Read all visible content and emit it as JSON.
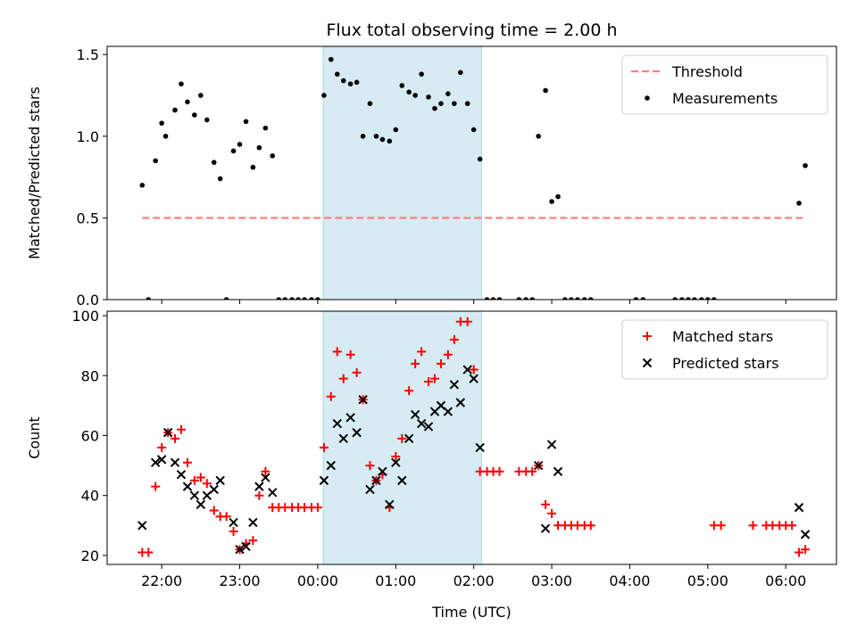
{
  "chart_data": [
    {
      "type": "scatter",
      "title": "Flux total observing time = 2.00 h",
      "xlabel": "",
      "ylabel": "Matched/Predicted stars",
      "ylim": [
        0,
        1.55
      ],
      "xlim": [
        21.3,
        6.65
      ],
      "yticks": [
        {
          "v": 0.0,
          "label": "0.0"
        },
        {
          "v": 0.5,
          "label": "0.5"
        },
        {
          "v": 1.0,
          "label": "1.0"
        },
        {
          "v": 1.5,
          "label": "1.5"
        }
      ],
      "highlight_span": [
        24.07,
        26.1
      ],
      "highlight_color": "#add8e6",
      "threshold": {
        "name": "Threshold",
        "y": 0.5,
        "x_from": 21.75,
        "x_to": 30.25,
        "color": "#ff7f7f"
      },
      "legend": {
        "loc": "upper right",
        "entries": [
          "Threshold",
          "Measurements"
        ]
      },
      "series": [
        {
          "name": "Measurements",
          "color": "#000000",
          "x": [
            21.75,
            21.83,
            21.92,
            22.0,
            22.05,
            22.17,
            22.25,
            22.33,
            22.42,
            22.5,
            22.58,
            22.67,
            22.75,
            22.83,
            22.92,
            23.0,
            23.08,
            23.17,
            23.25,
            23.33,
            23.42,
            23.5,
            23.58,
            23.67,
            23.75,
            23.83,
            23.92,
            24.0,
            24.08,
            24.17,
            24.25,
            24.33,
            24.42,
            24.5,
            24.58,
            24.67,
            24.75,
            24.83,
            24.92,
            25.0,
            25.08,
            25.17,
            25.25,
            25.33,
            25.42,
            25.5,
            25.58,
            25.67,
            25.75,
            25.83,
            25.92,
            26.0,
            26.08,
            26.17,
            26.25,
            26.33,
            26.58,
            26.67,
            26.75,
            26.83,
            26.92,
            27.0,
            27.08,
            27.17,
            27.25,
            27.33,
            27.42,
            27.5,
            28.08,
            28.17,
            28.58,
            28.67,
            28.75,
            28.83,
            28.92,
            29.0,
            29.08,
            30.17,
            30.25
          ],
          "y": [
            0.7,
            0.0,
            0.85,
            1.08,
            1.0,
            1.16,
            1.32,
            1.21,
            1.13,
            1.25,
            1.1,
            0.84,
            0.74,
            0.0,
            0.91,
            0.95,
            1.09,
            0.81,
            0.93,
            1.05,
            0.88,
            0.0,
            0.0,
            0.0,
            0.0,
            0.0,
            0.0,
            0.0,
            1.25,
            1.47,
            1.38,
            1.34,
            1.32,
            1.33,
            1.0,
            1.2,
            1.0,
            0.98,
            0.97,
            1.04,
            1.31,
            1.27,
            1.25,
            1.38,
            1.24,
            1.17,
            1.2,
            1.26,
            1.2,
            1.39,
            1.2,
            1.04,
            0.86,
            0.0,
            0.0,
            0.0,
            0.0,
            0.0,
            0.0,
            1.0,
            1.28,
            0.6,
            0.63,
            0.0,
            0.0,
            0.0,
            0.0,
            0.0,
            0.0,
            0.0,
            0.0,
            0.0,
            0.0,
            0.0,
            0.0,
            0.0,
            0.0,
            0.59,
            0.82
          ]
        }
      ]
    },
    {
      "type": "scatter",
      "title": "",
      "xlabel": "Time (UTC)",
      "ylabel": "Count",
      "ylim": [
        17,
        101.5
      ],
      "xlim": [
        21.3,
        6.65
      ],
      "yticks": [
        {
          "v": 20,
          "label": "20"
        },
        {
          "v": 40,
          "label": "40"
        },
        {
          "v": 60,
          "label": "60"
        },
        {
          "v": 80,
          "label": "80"
        },
        {
          "v": 100,
          "label": "100"
        }
      ],
      "xticks": [
        {
          "v": 22,
          "label": "22:00"
        },
        {
          "v": 23,
          "label": "23:00"
        },
        {
          "v": 24,
          "label": "00:00"
        },
        {
          "v": 25,
          "label": "01:00"
        },
        {
          "v": 26,
          "label": "02:00"
        },
        {
          "v": 27,
          "label": "03:00"
        },
        {
          "v": 28,
          "label": "04:00"
        },
        {
          "v": 29,
          "label": "05:00"
        },
        {
          "v": 30,
          "label": "06:00"
        }
      ],
      "highlight_span": [
        24.07,
        26.1
      ],
      "highlight_color": "#add8e6",
      "legend": {
        "loc": "upper right",
        "entries": [
          "Matched stars",
          "Predicted stars"
        ]
      },
      "series": [
        {
          "name": "Matched stars",
          "marker": "+",
          "color": "#ff0000",
          "x": [
            21.75,
            21.83,
            21.92,
            22.0,
            22.08,
            22.17,
            22.25,
            22.33,
            22.42,
            22.5,
            22.58,
            22.67,
            22.75,
            22.83,
            22.92,
            23.0,
            23.08,
            23.17,
            23.25,
            23.33,
            23.42,
            23.5,
            23.58,
            23.67,
            23.75,
            23.83,
            23.92,
            24.0,
            24.08,
            24.17,
            24.25,
            24.33,
            24.42,
            24.5,
            24.58,
            24.67,
            24.75,
            24.83,
            24.92,
            25.0,
            25.08,
            25.17,
            25.25,
            25.33,
            25.42,
            25.5,
            25.58,
            25.67,
            25.75,
            25.83,
            25.92,
            26.0,
            26.08,
            26.17,
            26.25,
            26.33,
            26.58,
            26.67,
            26.75,
            26.83,
            26.92,
            27.0,
            27.08,
            27.17,
            27.25,
            27.33,
            27.42,
            27.5,
            29.08,
            29.17,
            29.58,
            29.75,
            29.83,
            29.92,
            30.0,
            30.08,
            30.17,
            30.25
          ],
          "y": [
            21,
            21,
            43,
            56,
            61,
            59,
            62,
            51,
            45,
            46,
            44,
            35,
            33,
            33,
            28,
            22,
            24,
            25,
            40,
            48,
            36,
            36,
            36,
            36,
            36,
            36,
            36,
            36,
            56,
            73,
            88,
            79,
            87,
            81,
            72,
            50,
            45,
            47,
            36,
            53,
            59,
            75,
            84,
            88,
            78,
            79,
            84,
            87,
            92,
            98,
            98,
            82,
            48,
            48,
            48,
            48,
            48,
            48,
            48,
            50,
            37,
            34,
            30,
            30,
            30,
            30,
            30,
            30,
            30,
            30,
            30,
            30,
            30,
            30,
            30,
            30,
            21,
            22
          ]
        },
        {
          "name": "Predicted stars",
          "marker": "x",
          "color": "#000000",
          "x": [
            21.75,
            21.92,
            22.0,
            22.08,
            22.17,
            22.25,
            22.33,
            22.42,
            22.5,
            22.58,
            22.67,
            22.75,
            22.92,
            23.0,
            23.08,
            23.17,
            23.25,
            23.33,
            23.42,
            24.08,
            24.17,
            24.25,
            24.33,
            24.42,
            24.5,
            24.58,
            24.67,
            24.75,
            24.83,
            24.92,
            25.0,
            25.08,
            25.17,
            25.25,
            25.33,
            25.42,
            25.5,
            25.58,
            25.67,
            25.75,
            25.83,
            25.92,
            26.0,
            26.08,
            26.83,
            26.92,
            27.0,
            27.08,
            30.17,
            30.25
          ],
          "y": [
            30,
            51,
            52,
            61,
            51,
            47,
            43,
            40,
            37,
            40,
            42,
            45,
            31,
            22,
            23,
            31,
            43,
            46,
            41,
            45,
            50,
            64,
            59,
            66,
            61,
            72,
            42,
            45,
            48,
            37,
            51,
            45,
            59,
            67,
            64,
            63,
            68,
            70,
            68,
            77,
            71,
            82,
            79,
            56,
            50,
            29,
            57,
            48,
            36,
            27
          ]
        }
      ]
    }
  ]
}
